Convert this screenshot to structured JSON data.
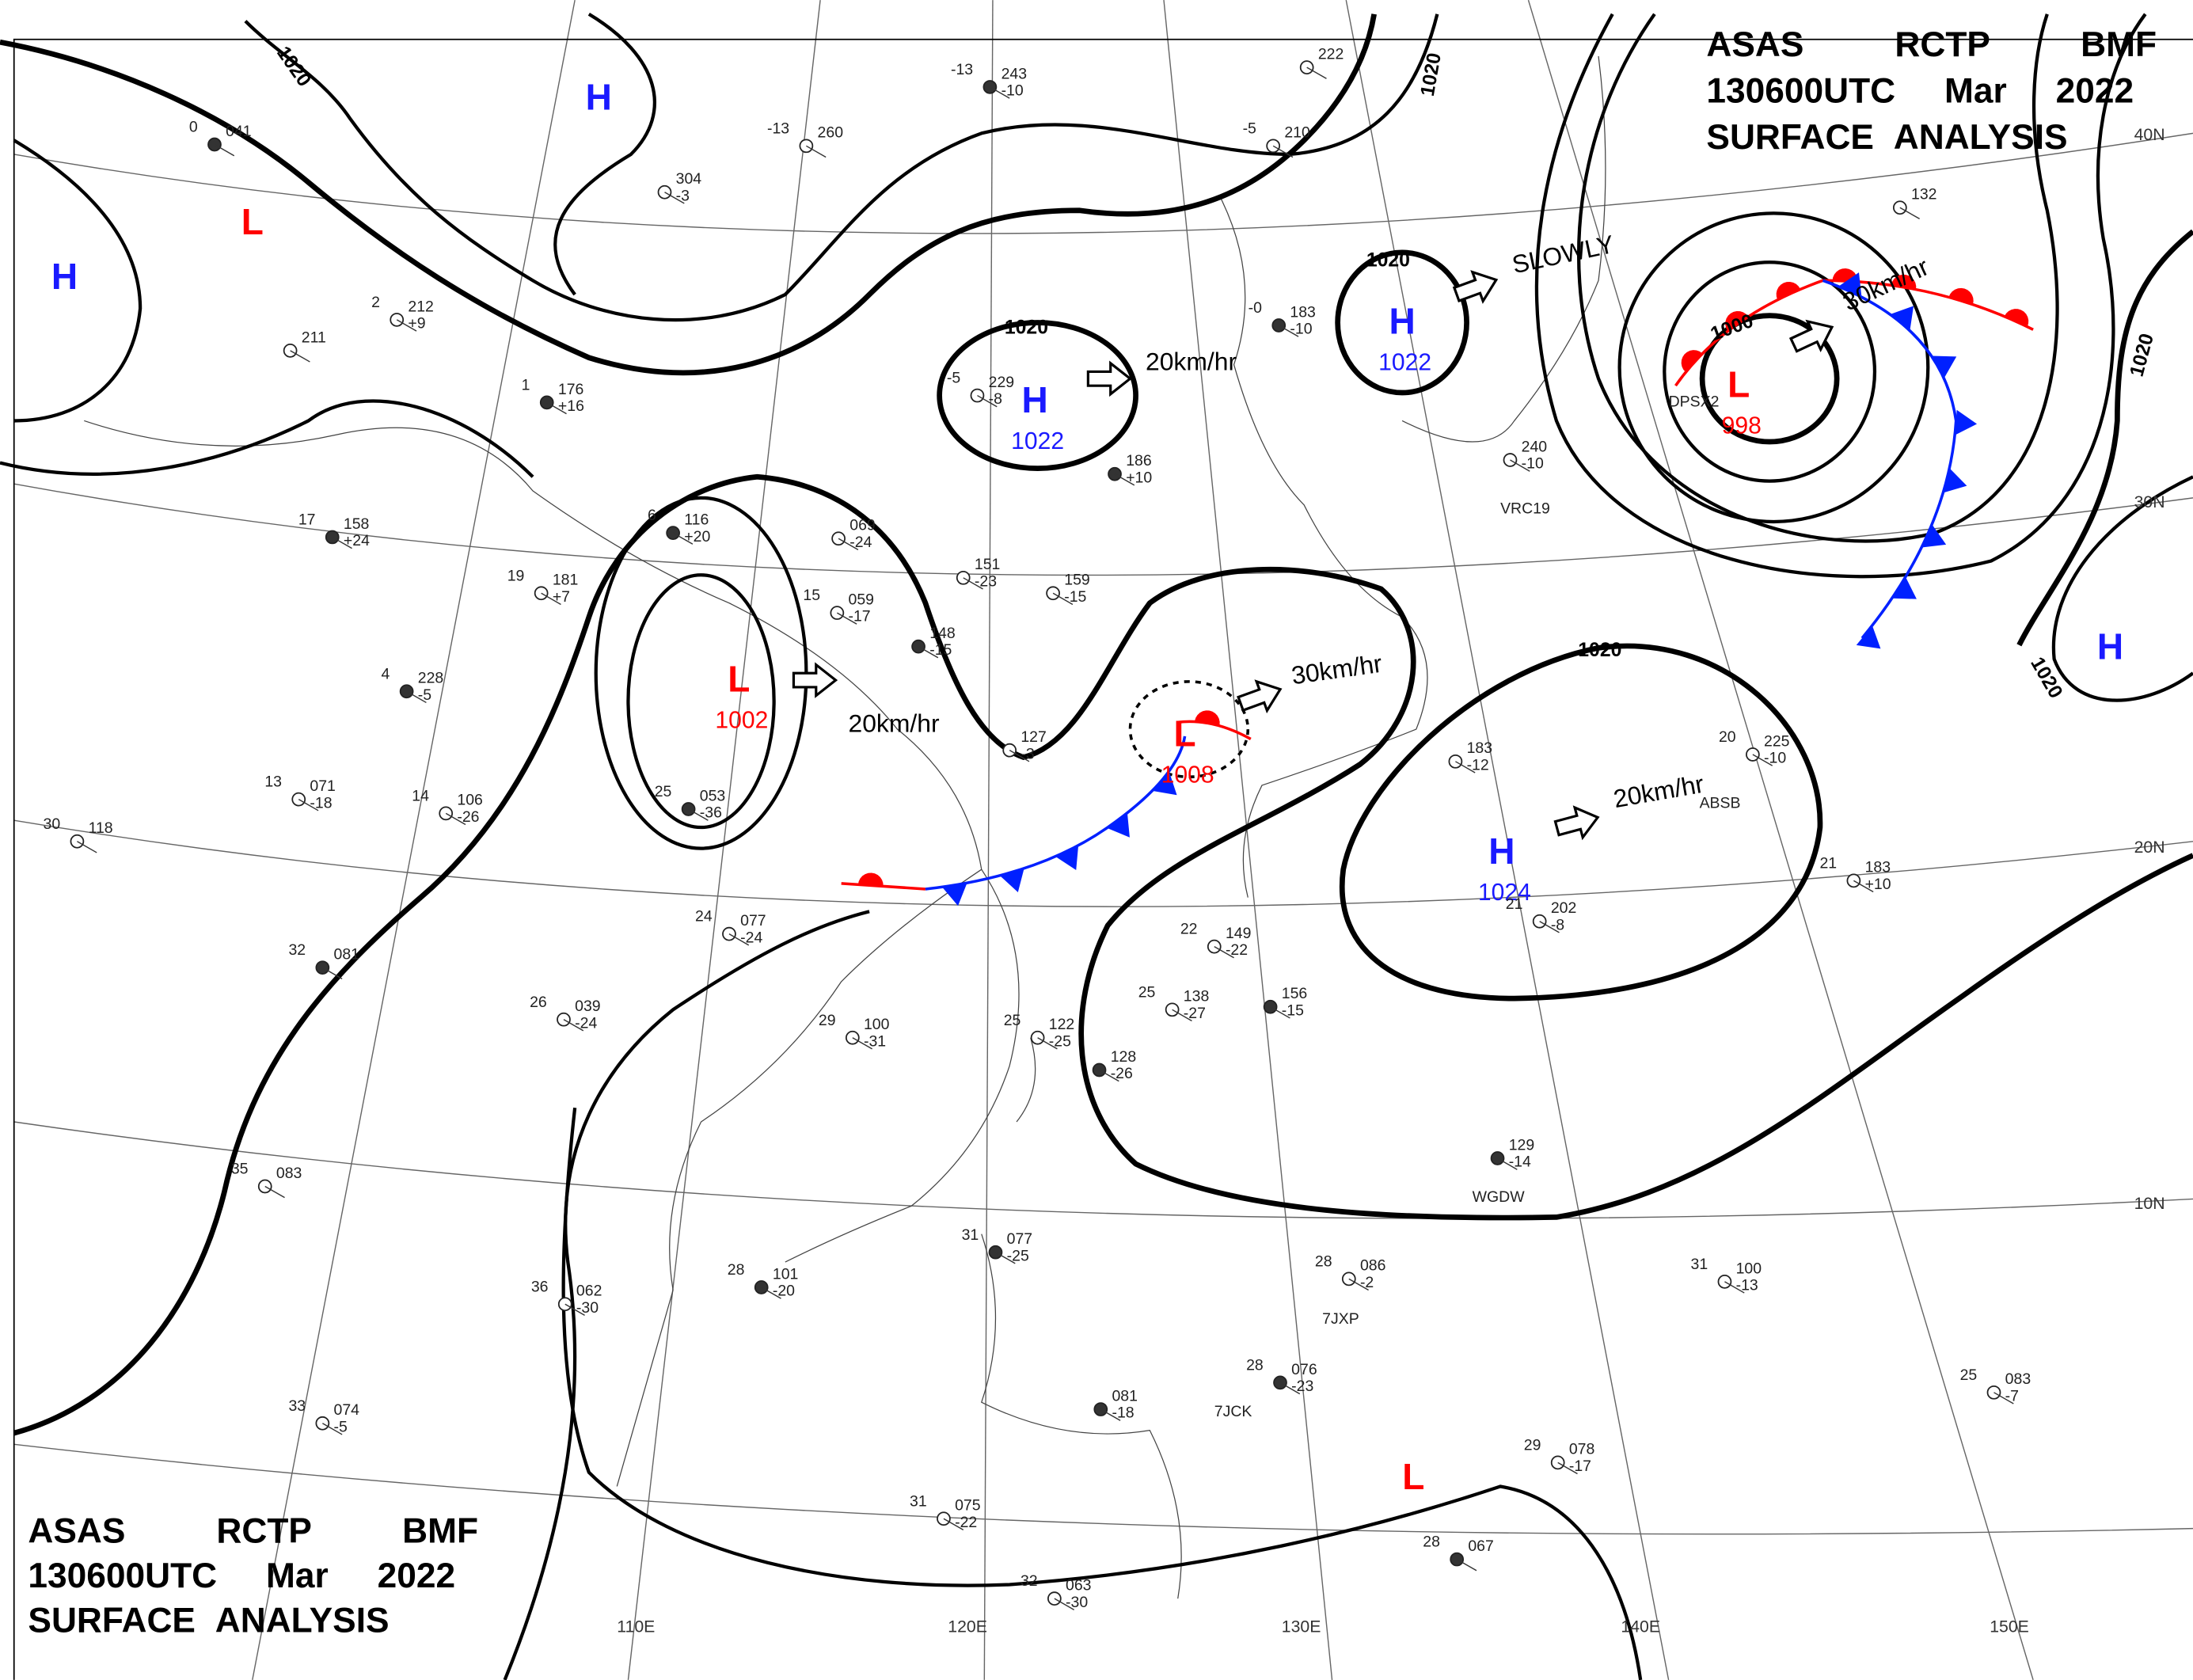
{
  "header": {
    "lines": [
      "ASAS RCTP BMF",
      "130600UTC Mar 2022",
      "SURFACE ANALYSIS"
    ]
  },
  "centers": [
    {
      "symbol": "H"
    },
    {
      "symbol": "L"
    },
    {
      "symbol": "H"
    },
    {
      "symbol": "H",
      "pressure": "1022"
    },
    {
      "symbol": "H",
      "pressure": "1022"
    },
    {
      "symbol": "L",
      "pressure": "998"
    },
    {
      "symbol": "L",
      "pressure": "1002"
    },
    {
      "symbol": "L",
      "pressure": "1008"
    },
    {
      "symbol": "H",
      "pressure": "1024"
    },
    {
      "symbol": "H"
    },
    {
      "symbol": "L"
    }
  ],
  "isobar_labels": [
    "1020",
    "1020",
    "1020",
    "1020",
    "1020",
    "1020",
    "1020",
    "1000"
  ],
  "motions": [
    "20km/hr",
    "SLOWLY",
    "30km/hr",
    "30km/hr",
    "20km/hr",
    "20km/hr"
  ],
  "grid_labels": {
    "lat": [
      "40N",
      "30N",
      "20N",
      "10N"
    ],
    "lon": [
      "110E",
      "120E",
      "130E",
      "140E",
      "150E"
    ]
  },
  "station_ids": [
    "VRC19",
    "WGDW",
    "7JXP",
    "7JCK",
    "DPSX2",
    "ABSB"
  ],
  "stations": [
    {
      "temp": "25",
      "pressure": "053",
      "tendency": "-36"
    },
    {
      "temp": "13",
      "pressure": "071",
      "tendency": "-18"
    },
    {
      "temp": "14",
      "pressure": "106",
      "tendency": "-26"
    },
    {
      "temp": "17",
      "pressure": "158",
      "tendency": "+24"
    },
    {
      "temp": "19",
      "pressure": "181",
      "tendency": "+7"
    },
    {
      "temp": "2",
      "pressure": "212",
      "tendency": "+9"
    },
    {
      "temp": "1",
      "pressure": "176",
      "tendency": "+16"
    },
    {
      "pressure": "151",
      "tendency": "-23"
    },
    {
      "pressure": "159",
      "tendency": "-15"
    },
    {
      "pressure": "148",
      "tendency": "-15"
    },
    {
      "pressure": "069",
      "tendency": "-24"
    },
    {
      "temp": "15",
      "pressure": "059",
      "tendency": "-17"
    },
    {
      "temp": "6",
      "pressure": "116",
      "tendency": "+20"
    },
    {
      "pressure": "127",
      "tendency": "-3"
    },
    {
      "temp": "-5",
      "pressure": "229",
      "tendency": "-8"
    },
    {
      "pressure": "186",
      "tendency": "+10"
    },
    {
      "temp": "29",
      "pressure": "100",
      "tendency": "-31"
    },
    {
      "temp": "25",
      "pressure": "122",
      "tendency": "-25"
    },
    {
      "pressure": "128",
      "tendency": "-26"
    },
    {
      "temp": "22",
      "pressure": "149",
      "tendency": "-22"
    },
    {
      "temp": "25",
      "pressure": "138",
      "tendency": "-27"
    },
    {
      "pressure": "156",
      "tendency": "-15"
    },
    {
      "temp": "21",
      "pressure": "202",
      "tendency": "-8"
    },
    {
      "temp": "21",
      "pressure": "183",
      "tendency": "+10"
    },
    {
      "pressure": "129",
      "tendency": "-14"
    },
    {
      "temp": "31",
      "pressure": "100",
      "tendency": "-13"
    },
    {
      "temp": "28",
      "pressure": "086",
      "tendency": "-2"
    },
    {
      "temp": "28",
      "pressure": "076",
      "tendency": "-23"
    },
    {
      "temp": "25",
      "pressure": "083",
      "tendency": "-7"
    },
    {
      "temp": "29",
      "pressure": "078",
      "tendency": "-17"
    },
    {
      "temp": "28",
      "pressure": "067"
    },
    {
      "temp": "33",
      "pressure": "074",
      "tendency": "-5"
    },
    {
      "temp": "36",
      "pressure": "062",
      "tendency": "-30"
    },
    {
      "temp": "28",
      "pressure": "101",
      "tendency": "-20"
    },
    {
      "temp": "24",
      "pressure": "077",
      "tendency": "-24"
    },
    {
      "temp": "26",
      "pressure": "039",
      "tendency": "-24"
    },
    {
      "temp": "32",
      "pressure": "081"
    },
    {
      "temp": "30",
      "pressure": "118"
    },
    {
      "temp": "35",
      "pressure": "083"
    },
    {
      "temp": "31",
      "pressure": "077",
      "tendency": "-25"
    },
    {
      "temp": "32",
      "pressure": "063",
      "tendency": "-30"
    },
    {
      "temp": "31",
      "pressure": "075",
      "tendency": "-22"
    },
    {
      "pressure": "081",
      "tendency": "-18"
    },
    {
      "pressure": "304",
      "tendency": "-3"
    },
    {
      "temp": "-13",
      "pressure": "260"
    },
    {
      "temp": "-13",
      "pressure": "243",
      "tendency": "-10"
    },
    {
      "temp": "-5",
      "pressure": "210"
    },
    {
      "pressure": "222"
    },
    {
      "temp": "-0",
      "pressure": "183",
      "tendency": "-10"
    },
    {
      "pressure": "240",
      "tendency": "-10"
    },
    {
      "pressure": "132"
    },
    {
      "temp": "0",
      "pressure": "041"
    },
    {
      "pressure": "183",
      "tendency": "-12"
    },
    {
      "temp": "20",
      "pressure": "225",
      "tendency": "-10"
    },
    {
      "temp": "4",
      "pressure": "228",
      "tendency": "-5"
    },
    {
      "pressure": "211"
    }
  ]
}
